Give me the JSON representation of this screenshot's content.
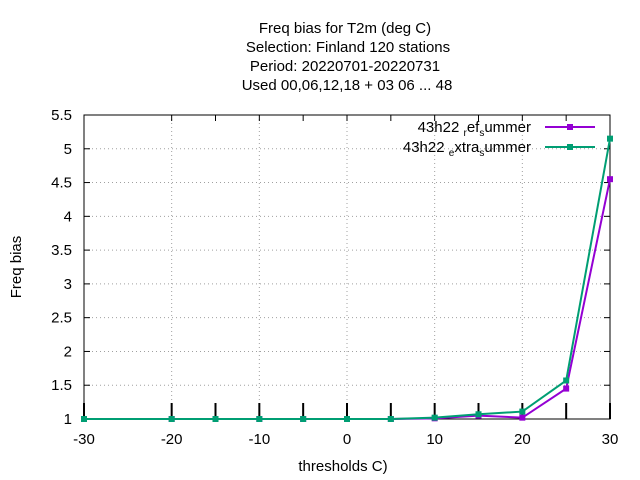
{
  "chart_data": {
    "type": "line",
    "title_lines": [
      "Freq bias  for T2m (deg C)",
      "Selection: Finland     120 stations",
      "Period: 20220701-20220731",
      "Used  00,06,12,18  + 03 06 ... 48"
    ],
    "xlabel": "thresholds C)",
    "ylabel": "Freq bias",
    "xlim": [
      -30,
      30
    ],
    "ylim": [
      1,
      5.5
    ],
    "xticks": [
      "-30",
      "-20",
      "-10",
      "0",
      "10",
      "20",
      "30"
    ],
    "yticks": [
      "1",
      "1.5",
      "2",
      "2.5",
      "3",
      "3.5",
      "4",
      "4.5",
      "5",
      "5.5"
    ],
    "grid": true,
    "legend_position": "top-right",
    "x": [
      -30,
      -20,
      -15,
      -10,
      -5,
      0,
      5,
      10,
      15,
      20,
      25,
      30
    ],
    "series": [
      {
        "name": "43h22_ref_summer",
        "legend_parts": [
          "43h22 ",
          "r",
          "ef",
          "s",
          "ummer"
        ],
        "color": "#9400d3",
        "values": [
          1.0,
          1.0,
          1.0,
          1.0,
          1.0,
          1.0,
          1.0,
          1.01,
          1.05,
          1.02,
          1.45,
          4.55
        ]
      },
      {
        "name": "43h22_extra_summer",
        "legend_parts": [
          "43h22 ",
          "e",
          "xtra",
          "s",
          "ummer"
        ],
        "color": "#009e73",
        "values": [
          1.0,
          1.0,
          1.0,
          1.0,
          1.0,
          1.0,
          1.0,
          1.02,
          1.07,
          1.11,
          1.57,
          5.15
        ]
      }
    ]
  }
}
